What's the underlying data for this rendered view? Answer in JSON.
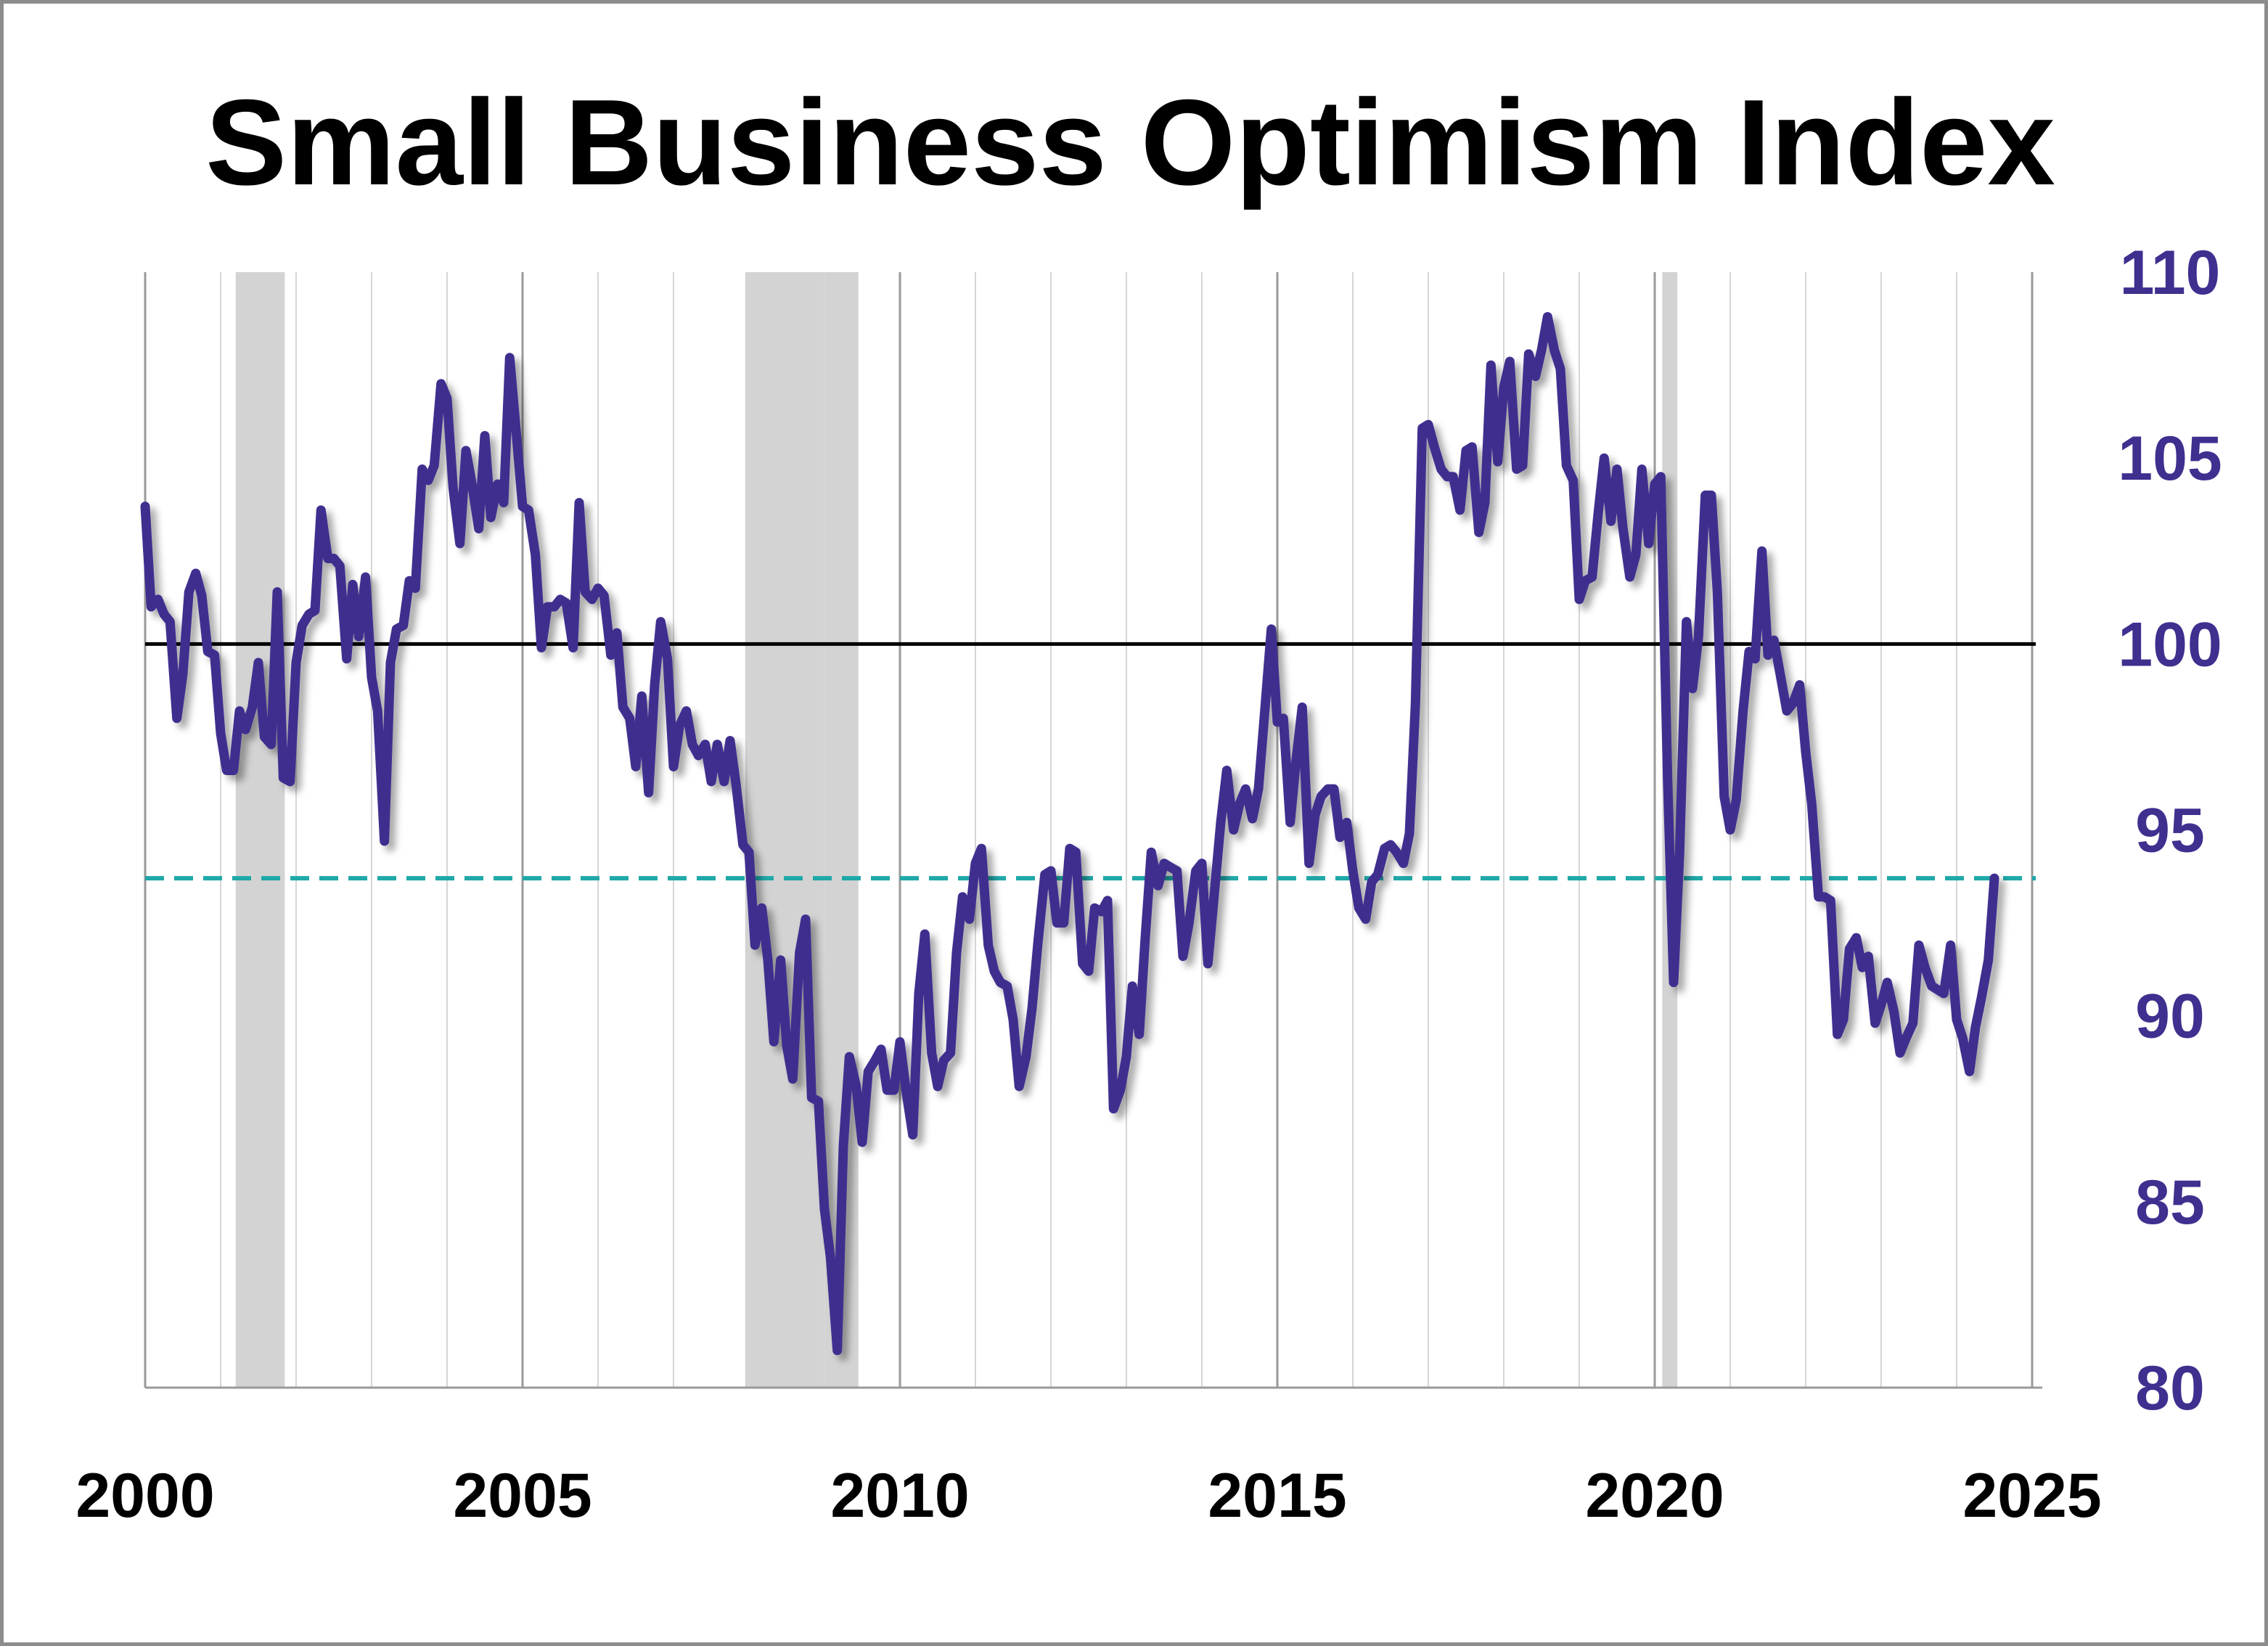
{
  "chart_data": {
    "type": "line",
    "title": "Small Business Optimism Index",
    "xlabel": "",
    "ylabel": "",
    "xlim": [
      2000,
      2025
    ],
    "ylim": [
      80,
      110
    ],
    "x_ticks": [
      "2000",
      "2005",
      "2010",
      "2015",
      "2020",
      "2025"
    ],
    "y_ticks": [
      "80",
      "85",
      "90",
      "95",
      "100",
      "105",
      "110"
    ],
    "y_axis_position": "right",
    "grid": "vertical lines every year",
    "reference_lines": [
      {
        "value": 100,
        "style": "solid",
        "color": "#000000"
      },
      {
        "value": 93.7,
        "style": "dashed",
        "color": "#1fa8a8"
      }
    ],
    "recession_shading": [
      {
        "start": 2001.2,
        "end": 2001.85
      },
      {
        "start": 2007.95,
        "end": 2009.45
      },
      {
        "start": 2020.1,
        "end": 2020.3
      }
    ],
    "series": [
      {
        "color": "#3f2f8f",
        "points": [
          [
            2000.0,
            103.7
          ],
          [
            2000.08,
            101.0
          ],
          [
            2000.17,
            101.2
          ],
          [
            2000.25,
            100.8
          ],
          [
            2000.33,
            100.6
          ],
          [
            2000.42,
            98.0
          ],
          [
            2000.5,
            99.2
          ],
          [
            2000.58,
            101.4
          ],
          [
            2000.67,
            101.9
          ],
          [
            2000.75,
            101.3
          ],
          [
            2000.83,
            99.8
          ],
          [
            2000.92,
            99.7
          ],
          [
            2001.0,
            97.6
          ],
          [
            2001.08,
            96.6
          ],
          [
            2001.17,
            96.6
          ],
          [
            2001.25,
            98.2
          ],
          [
            2001.33,
            97.7
          ],
          [
            2001.42,
            98.3
          ],
          [
            2001.5,
            99.5
          ],
          [
            2001.58,
            97.5
          ],
          [
            2001.67,
            97.3
          ],
          [
            2001.75,
            101.4
          ],
          [
            2001.83,
            96.4
          ],
          [
            2001.92,
            96.3
          ],
          [
            2002.0,
            99.5
          ],
          [
            2002.08,
            100.5
          ],
          [
            2002.17,
            100.8
          ],
          [
            2002.25,
            100.9
          ],
          [
            2002.33,
            103.6
          ],
          [
            2002.42,
            102.3
          ],
          [
            2002.5,
            102.3
          ],
          [
            2002.58,
            102.1
          ],
          [
            2002.67,
            99.6
          ],
          [
            2002.75,
            101.6
          ],
          [
            2002.83,
            100.2
          ],
          [
            2002.92,
            101.8
          ],
          [
            2003.0,
            99.1
          ],
          [
            2003.08,
            98.2
          ],
          [
            2003.17,
            94.7
          ],
          [
            2003.25,
            99.5
          ],
          [
            2003.33,
            100.4
          ],
          [
            2003.42,
            100.5
          ],
          [
            2003.5,
            101.7
          ],
          [
            2003.58,
            101.5
          ],
          [
            2003.67,
            104.7
          ],
          [
            2003.75,
            104.4
          ],
          [
            2003.83,
            104.8
          ],
          [
            2003.92,
            107.0
          ],
          [
            2004.0,
            106.6
          ],
          [
            2004.08,
            104.2
          ],
          [
            2004.17,
            102.7
          ],
          [
            2004.25,
            105.2
          ],
          [
            2004.33,
            104.3
          ],
          [
            2004.42,
            103.1
          ],
          [
            2004.5,
            105.6
          ],
          [
            2004.58,
            103.4
          ],
          [
            2004.67,
            104.3
          ],
          [
            2004.75,
            103.8
          ],
          [
            2004.83,
            107.7
          ],
          [
            2004.92,
            105.6
          ],
          [
            2005.0,
            103.7
          ],
          [
            2005.08,
            103.6
          ],
          [
            2005.17,
            102.4
          ],
          [
            2005.25,
            99.9
          ],
          [
            2005.33,
            101.0
          ],
          [
            2005.42,
            101.0
          ],
          [
            2005.5,
            101.2
          ],
          [
            2005.58,
            101.1
          ],
          [
            2005.67,
            99.9
          ],
          [
            2005.75,
            103.8
          ],
          [
            2005.83,
            101.4
          ],
          [
            2005.92,
            101.2
          ],
          [
            2006.0,
            101.5
          ],
          [
            2006.08,
            101.3
          ],
          [
            2006.17,
            99.7
          ],
          [
            2006.25,
            100.3
          ],
          [
            2006.33,
            98.3
          ],
          [
            2006.42,
            98.0
          ],
          [
            2006.5,
            96.7
          ],
          [
            2006.58,
            98.6
          ],
          [
            2006.67,
            96.0
          ],
          [
            2006.75,
            98.9
          ],
          [
            2006.83,
            100.6
          ],
          [
            2006.92,
            99.6
          ],
          [
            2007.0,
            96.7
          ],
          [
            2007.08,
            97.8
          ],
          [
            2007.17,
            98.2
          ],
          [
            2007.25,
            97.3
          ],
          [
            2007.33,
            97.0
          ],
          [
            2007.42,
            97.3
          ],
          [
            2007.5,
            96.3
          ],
          [
            2007.58,
            97.3
          ],
          [
            2007.67,
            96.3
          ],
          [
            2007.75,
            97.4
          ],
          [
            2007.83,
            96.2
          ],
          [
            2007.92,
            94.6
          ],
          [
            2008.0,
            94.4
          ],
          [
            2008.08,
            91.9
          ],
          [
            2008.17,
            92.9
          ],
          [
            2008.25,
            91.5
          ],
          [
            2008.33,
            89.3
          ],
          [
            2008.42,
            91.5
          ],
          [
            2008.5,
            89.2
          ],
          [
            2008.58,
            88.3
          ],
          [
            2008.67,
            91.7
          ],
          [
            2008.75,
            92.6
          ],
          [
            2008.83,
            87.8
          ],
          [
            2008.92,
            87.7
          ],
          [
            2009.0,
            84.8
          ],
          [
            2009.08,
            83.5
          ],
          [
            2009.17,
            81.0
          ],
          [
            2009.25,
            86.5
          ],
          [
            2009.33,
            88.9
          ],
          [
            2009.42,
            88.1
          ],
          [
            2009.5,
            86.6
          ],
          [
            2009.58,
            88.5
          ],
          [
            2009.67,
            88.8
          ],
          [
            2009.75,
            89.1
          ],
          [
            2009.83,
            88.0
          ],
          [
            2009.92,
            88.0
          ],
          [
            2010.0,
            89.3
          ],
          [
            2010.08,
            88.0
          ],
          [
            2010.17,
            86.8
          ],
          [
            2010.25,
            90.6
          ],
          [
            2010.33,
            92.2
          ],
          [
            2010.42,
            89.0
          ],
          [
            2010.5,
            88.1
          ],
          [
            2010.58,
            88.8
          ],
          [
            2010.67,
            89.0
          ],
          [
            2010.75,
            91.7
          ],
          [
            2010.83,
            93.2
          ],
          [
            2010.92,
            92.6
          ],
          [
            2011.0,
            94.1
          ],
          [
            2011.08,
            94.5
          ],
          [
            2011.17,
            91.9
          ],
          [
            2011.25,
            91.2
          ],
          [
            2011.33,
            90.9
          ],
          [
            2011.42,
            90.8
          ],
          [
            2011.5,
            89.9
          ],
          [
            2011.58,
            88.1
          ],
          [
            2011.67,
            88.9
          ],
          [
            2011.75,
            90.2
          ],
          [
            2011.83,
            92.0
          ],
          [
            2011.92,
            93.8
          ],
          [
            2012.0,
            93.9
          ],
          [
            2012.08,
            92.5
          ],
          [
            2012.17,
            92.5
          ],
          [
            2012.25,
            94.5
          ],
          [
            2012.33,
            94.4
          ],
          [
            2012.42,
            91.4
          ],
          [
            2012.5,
            91.2
          ],
          [
            2012.58,
            92.9
          ],
          [
            2012.67,
            92.8
          ],
          [
            2012.75,
            93.1
          ],
          [
            2012.83,
            87.5
          ],
          [
            2012.92,
            88.0
          ],
          [
            2013.0,
            88.9
          ],
          [
            2013.08,
            90.8
          ],
          [
            2013.17,
            89.5
          ],
          [
            2013.25,
            92.1
          ],
          [
            2013.33,
            94.4
          ],
          [
            2013.42,
            93.5
          ],
          [
            2013.5,
            94.1
          ],
          [
            2013.58,
            94.0
          ],
          [
            2013.67,
            93.9
          ],
          [
            2013.75,
            91.6
          ],
          [
            2013.83,
            92.5
          ],
          [
            2013.92,
            93.9
          ],
          [
            2014.0,
            94.1
          ],
          [
            2014.08,
            91.4
          ],
          [
            2014.17,
            93.4
          ],
          [
            2014.25,
            95.2
          ],
          [
            2014.33,
            96.6
          ],
          [
            2014.42,
            95.0
          ],
          [
            2014.5,
            95.7
          ],
          [
            2014.58,
            96.1
          ],
          [
            2014.67,
            95.3
          ],
          [
            2014.75,
            96.1
          ],
          [
            2014.83,
            98.1
          ],
          [
            2014.92,
            100.4
          ],
          [
            2015.0,
            97.9
          ],
          [
            2015.08,
            98.0
          ],
          [
            2015.17,
            95.2
          ],
          [
            2015.25,
            96.9
          ],
          [
            2015.33,
            98.3
          ],
          [
            2015.42,
            94.1
          ],
          [
            2015.5,
            95.4
          ],
          [
            2015.58,
            95.9
          ],
          [
            2015.67,
            96.1
          ],
          [
            2015.75,
            96.1
          ],
          [
            2015.83,
            94.8
          ],
          [
            2015.92,
            95.2
          ],
          [
            2016.0,
            93.9
          ],
          [
            2016.08,
            92.9
          ],
          [
            2016.17,
            92.6
          ],
          [
            2016.25,
            93.6
          ],
          [
            2016.33,
            93.8
          ],
          [
            2016.42,
            94.5
          ],
          [
            2016.5,
            94.6
          ],
          [
            2016.58,
            94.4
          ],
          [
            2016.67,
            94.1
          ],
          [
            2016.75,
            94.9
          ],
          [
            2016.83,
            98.4
          ],
          [
            2016.92,
            105.8
          ],
          [
            2017.0,
            105.9
          ],
          [
            2017.08,
            105.3
          ],
          [
            2017.17,
            104.7
          ],
          [
            2017.25,
            104.5
          ],
          [
            2017.33,
            104.5
          ],
          [
            2017.42,
            103.6
          ],
          [
            2017.5,
            105.2
          ],
          [
            2017.58,
            105.3
          ],
          [
            2017.67,
            103.0
          ],
          [
            2017.75,
            103.8
          ],
          [
            2017.83,
            107.5
          ],
          [
            2017.92,
            104.9
          ],
          [
            2018.0,
            106.9
          ],
          [
            2018.08,
            107.6
          ],
          [
            2018.17,
            104.7
          ],
          [
            2018.25,
            104.8
          ],
          [
            2018.33,
            107.8
          ],
          [
            2018.42,
            107.2
          ],
          [
            2018.5,
            107.9
          ],
          [
            2018.58,
            108.8
          ],
          [
            2018.67,
            107.9
          ],
          [
            2018.75,
            107.4
          ],
          [
            2018.83,
            104.8
          ],
          [
            2018.92,
            104.4
          ],
          [
            2019.0,
            101.2
          ],
          [
            2019.08,
            101.7
          ],
          [
            2019.17,
            101.8
          ],
          [
            2019.25,
            103.5
          ],
          [
            2019.33,
            105.0
          ],
          [
            2019.42,
            103.3
          ],
          [
            2019.5,
            104.7
          ],
          [
            2019.58,
            103.1
          ],
          [
            2019.67,
            101.8
          ],
          [
            2019.75,
            102.4
          ],
          [
            2019.83,
            104.7
          ],
          [
            2019.92,
            102.7
          ],
          [
            2020.0,
            104.3
          ],
          [
            2020.08,
            104.5
          ],
          [
            2020.17,
            96.4
          ],
          [
            2020.25,
            90.9
          ],
          [
            2020.33,
            94.4
          ],
          [
            2020.42,
            100.6
          ],
          [
            2020.5,
            98.8
          ],
          [
            2020.58,
            100.2
          ],
          [
            2020.67,
            104.0
          ],
          [
            2020.75,
            104.0
          ],
          [
            2020.83,
            101.4
          ],
          [
            2020.92,
            95.9
          ],
          [
            2021.0,
            95.0
          ],
          [
            2021.08,
            95.8
          ],
          [
            2021.17,
            98.2
          ],
          [
            2021.25,
            99.8
          ],
          [
            2021.33,
            99.6
          ],
          [
            2021.42,
            102.5
          ],
          [
            2021.5,
            99.7
          ],
          [
            2021.58,
            100.1
          ],
          [
            2021.67,
            99.1
          ],
          [
            2021.75,
            98.2
          ],
          [
            2021.83,
            98.4
          ],
          [
            2021.92,
            98.9
          ],
          [
            2022.0,
            97.1
          ],
          [
            2022.08,
            95.7
          ],
          [
            2022.17,
            93.2
          ],
          [
            2022.25,
            93.2
          ],
          [
            2022.33,
            93.1
          ],
          [
            2022.42,
            89.5
          ],
          [
            2022.5,
            89.9
          ],
          [
            2022.58,
            91.8
          ],
          [
            2022.67,
            92.1
          ],
          [
            2022.75,
            91.3
          ],
          [
            2022.83,
            91.6
          ],
          [
            2022.92,
            89.8
          ],
          [
            2023.0,
            90.3
          ],
          [
            2023.08,
            90.9
          ],
          [
            2023.17,
            90.1
          ],
          [
            2023.25,
            89.0
          ],
          [
            2023.33,
            89.4
          ],
          [
            2023.42,
            89.8
          ],
          [
            2023.5,
            91.9
          ],
          [
            2023.58,
            91.3
          ],
          [
            2023.67,
            90.8
          ],
          [
            2023.75,
            90.7
          ],
          [
            2023.83,
            90.6
          ],
          [
            2023.92,
            91.9
          ],
          [
            2024.0,
            89.9
          ],
          [
            2024.08,
            89.4
          ],
          [
            2024.17,
            88.5
          ],
          [
            2024.25,
            89.7
          ],
          [
            2024.33,
            90.5
          ],
          [
            2024.42,
            91.5
          ],
          [
            2024.5,
            93.7
          ]
        ]
      }
    ]
  },
  "colors": {
    "line": "#3f2f8f",
    "axis_labels_right": "#3f2f8f",
    "recession": "#d3d3d3",
    "dashed": "#1fa8a8",
    "grid": "#d6d6d6",
    "reference": "#000000"
  }
}
